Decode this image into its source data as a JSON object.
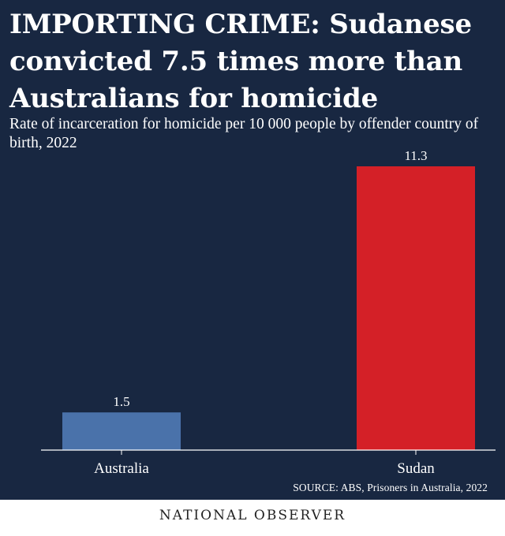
{
  "header": {
    "title": "IMPORTING CRIME: Sudanese convicted 7.5 times more than Australians for homicide",
    "subtitle": "Rate of incarceration for homicide per 10 000 people by offender country of birth, 2022"
  },
  "chart_data": {
    "type": "bar",
    "title": "IMPORTING CRIME: Sudanese convicted 7.5 times more than Australians for homicide",
    "subtitle": "Rate of incarceration for homicide per 10 000 people by offender country of birth, 2022",
    "categories": [
      "Australia",
      "Sudan"
    ],
    "values": [
      1.5,
      11.3
    ],
    "value_labels": [
      "1.5",
      "11.3"
    ],
    "colors": [
      "#4a72aa",
      "#d42027"
    ],
    "xlabel": "",
    "ylabel": "",
    "ylim": [
      0,
      11.3
    ],
    "grid": false,
    "legend": "none"
  },
  "source": "SOURCE: ABS, Prisoners in Australia, 2022",
  "brand": "NATIONAL OBSERVER",
  "colors": {
    "background": "#182741",
    "axis": "#ffffff",
    "text": "#ffffff",
    "footer_text": "#222222"
  }
}
